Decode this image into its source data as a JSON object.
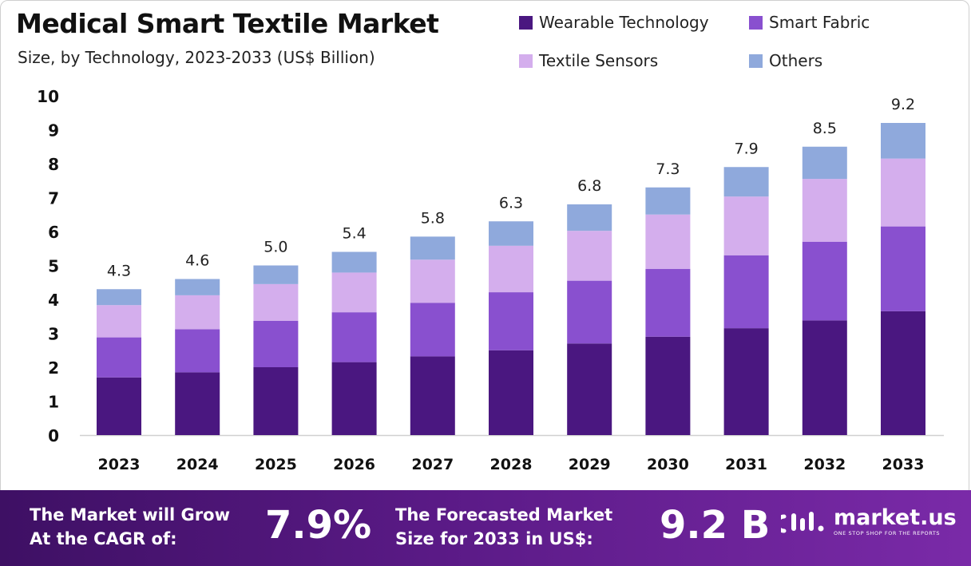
{
  "header": {
    "title": "Medical Smart Textile Market",
    "subtitle": "Size, by Technology, 2023-2033 (US$ Billion)"
  },
  "chart_data": {
    "type": "bar",
    "stacked": true,
    "title": "Medical Smart Textile Market",
    "subtitle": "Size, by Technology, 2023-2033 (US$ Billion)",
    "xlabel": "",
    "ylabel": "",
    "ylim": [
      0,
      10
    ],
    "y_ticks": [
      0,
      1,
      2,
      3,
      4,
      5,
      6,
      7,
      8,
      9,
      10
    ],
    "grid": false,
    "legend_position": "top-right",
    "categories": [
      "2023",
      "2024",
      "2025",
      "2026",
      "2027",
      "2028",
      "2029",
      "2030",
      "2031",
      "2032",
      "2033"
    ],
    "series": [
      {
        "name": "Wearable Technology",
        "color": "#4a1780",
        "values": [
          1.7,
          1.85,
          2.0,
          2.15,
          2.32,
          2.5,
          2.7,
          2.9,
          3.15,
          3.38,
          3.65
        ]
      },
      {
        "name": "Smart Fabric",
        "color": "#8950cf",
        "values": [
          1.18,
          1.27,
          1.37,
          1.47,
          1.58,
          1.71,
          1.85,
          2.0,
          2.15,
          2.32,
          2.5
        ]
      },
      {
        "name": "Textile Sensors",
        "color": "#d4aeed",
        "values": [
          0.95,
          1.0,
          1.08,
          1.17,
          1.27,
          1.37,
          1.47,
          1.6,
          1.73,
          1.85,
          2.0
        ]
      },
      {
        "name": "Others",
        "color": "#8fa9dc",
        "values": [
          0.47,
          0.48,
          0.55,
          0.61,
          0.68,
          0.72,
          0.78,
          0.8,
          0.87,
          0.95,
          1.05
        ]
      }
    ],
    "totals": [
      "4.3",
      "4.6",
      "5.0",
      "5.4",
      "5.8",
      "6.3",
      "6.8",
      "7.3",
      "7.9",
      "8.5",
      "9.2"
    ]
  },
  "footer": {
    "cagr_label_line1": "The Market will Grow",
    "cagr_label_line2": "At the CAGR of:",
    "cagr_value": "7.9%",
    "forecast_label_line1": "The Forecasted Market",
    "forecast_label_line2": "Size for 2033 in US$:",
    "forecast_value": "9.2 B",
    "brand_name": "market.us",
    "brand_tagline": "ONE STOP SHOP FOR THE REPORTS",
    "brand_icon": "market-us-logo-icon"
  }
}
